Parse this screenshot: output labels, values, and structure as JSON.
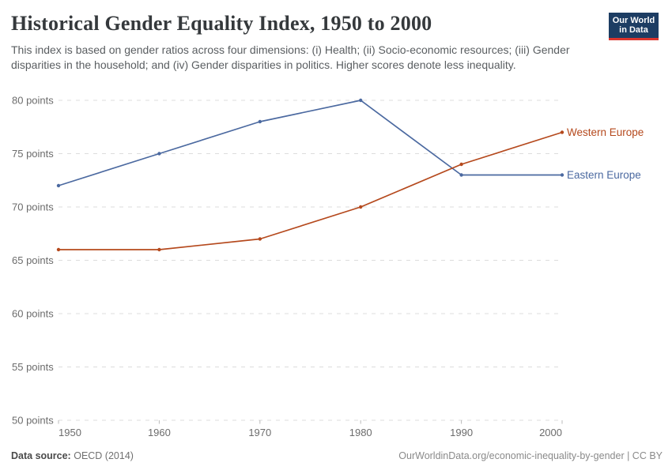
{
  "header": {
    "title": "Historical Gender Equality Index, 1950 to 2000",
    "subtitle": "This index is based on gender ratios across four dimensions: (i) Health; (ii) Socio-economic resources; (iii) Gender disparities in the household; and (iv) Gender disparities in politics. Higher scores denote less inequality.",
    "logo": {
      "line1": "Our World",
      "line2": "in Data",
      "bg_color": "#1d3d63",
      "bar_color": "#dc352d"
    }
  },
  "chart_data": {
    "type": "line",
    "title": "Historical Gender Equality Index, 1950 to 2000",
    "xlabel": "",
    "ylabel": "",
    "x": [
      1950,
      1960,
      1970,
      1980,
      1990,
      2000
    ],
    "series": [
      {
        "name": "Eastern Europe",
        "color": "#4b69a0",
        "values": [
          72,
          75,
          78,
          80,
          73,
          73
        ]
      },
      {
        "name": "Western Europe",
        "color": "#b5491d",
        "values": [
          66,
          66,
          67,
          70,
          74,
          77
        ]
      }
    ],
    "ylim": [
      50,
      80
    ],
    "xlim": [
      1950,
      2000
    ],
    "yticks": [
      {
        "value": 50,
        "label": "50 points"
      },
      {
        "value": 55,
        "label": "55 points"
      },
      {
        "value": 60,
        "label": "60 points"
      },
      {
        "value": 65,
        "label": "65 points"
      },
      {
        "value": 70,
        "label": "70 points"
      },
      {
        "value": 75,
        "label": "75 points"
      },
      {
        "value": 80,
        "label": "80 points"
      }
    ],
    "xticks": [
      {
        "value": 1950,
        "label": "1950"
      },
      {
        "value": 1960,
        "label": "1960"
      },
      {
        "value": 1970,
        "label": "1970"
      },
      {
        "value": 1980,
        "label": "1980"
      },
      {
        "value": 1990,
        "label": "1990"
      },
      {
        "value": 2000,
        "label": "2000"
      }
    ],
    "grid": "horizontal-dashed",
    "grid_color": "#dcdcdc",
    "tick_label_color": "#6c6c6c",
    "legend_position": "end-of-line-labels"
  },
  "footer": {
    "source_label": "Data source:",
    "source_value": "OECD (2014)",
    "attribution": "OurWorldinData.org/economic-inequality-by-gender | CC BY"
  }
}
